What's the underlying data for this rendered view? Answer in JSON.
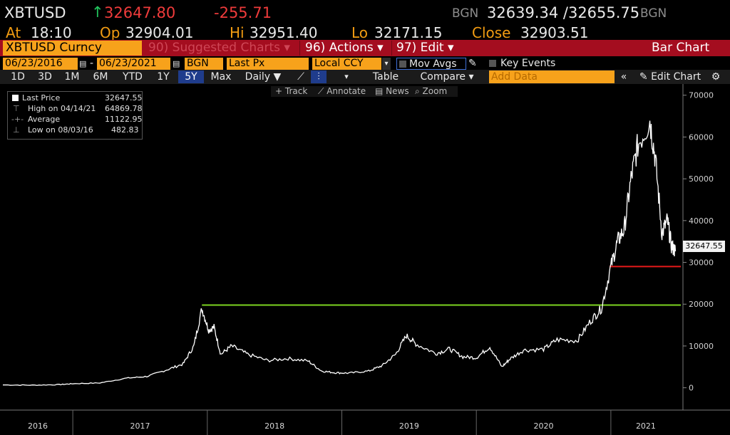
{
  "header": {
    "ticker": "XBTUSD",
    "last_price": "32647.80",
    "change": "-255.71",
    "bgn_left": "BGN",
    "bid_ask": "32639.34 /32655.75",
    "bgn_right": "BGN",
    "at_label": "At",
    "at_value": "18:10",
    "op_label": "Op",
    "op_value": "32904.01",
    "hi_label": "Hi",
    "hi_value": "32951.40",
    "lo_label": "Lo",
    "lo_value": "32171.15",
    "close_label": "Close",
    "close_value": "32903.51"
  },
  "command_bar": {
    "security": "XBTUSD Curncy",
    "suggested": "90) Suggested Charts ▾",
    "actions": "96) Actions ▾",
    "edit": "97) Edit ▾",
    "chart_type": "Bar Chart"
  },
  "controls": {
    "start_date": "06/23/2016",
    "end_date": "06/23/2021",
    "source": "BGN",
    "field": "Last Px",
    "currency": "Local CCY",
    "mov_avgs": "Mov Avgs",
    "key_events": "Key Events"
  },
  "toolbar": {
    "ranges": [
      "1D",
      "3D",
      "1M",
      "6M",
      "YTD",
      "1Y",
      "5Y",
      "Max"
    ],
    "active_range": "5Y",
    "frequency": "Daily ▼",
    "table": "Table",
    "compare": "Compare ▾",
    "add_data_placeholder": "Add Data",
    "edit_chart": "Edit Chart"
  },
  "chart_tools": [
    "Track",
    "Annotate",
    "News",
    "Zoom"
  ],
  "legend": {
    "last_price_label": "Last Price",
    "last_price_value": "32647.55",
    "high_label": "High on 04/14/21",
    "high_value": "64869.78",
    "average_label": "Average",
    "average_value": "11122.95",
    "low_label": "Low on 08/03/16",
    "low_value": "482.83"
  },
  "colors": {
    "price_line": "#ffffff",
    "support_line_green": "#7dd321",
    "support_line_red": "#e61919"
  },
  "chart_data": {
    "type": "line",
    "x_unit": "fractional year",
    "series": [
      {
        "name": "Last Price",
        "x": [
          2016.48,
          2016.7,
          2016.9,
          2017.0,
          2017.2,
          2017.4,
          2017.55,
          2017.7,
          2017.82,
          2017.9,
          2017.96,
          2018.01,
          2018.05,
          2018.1,
          2018.18,
          2018.3,
          2018.45,
          2018.6,
          2018.75,
          2018.85,
          2018.95,
          2019.05,
          2019.2,
          2019.3,
          2019.4,
          2019.48,
          2019.55,
          2019.7,
          2019.8,
          2019.9,
          2020.0,
          2020.1,
          2020.19,
          2020.25,
          2020.35,
          2020.5,
          2020.6,
          2020.75,
          2020.85,
          2020.93,
          2021.0,
          2021.05,
          2021.1,
          2021.15,
          2021.2,
          2021.29,
          2021.33,
          2021.38,
          2021.42,
          2021.45,
          2021.48
        ],
        "y": [
          680,
          620,
          750,
          980,
          1150,
          2300,
          2700,
          4300,
          5700,
          10000,
          19000,
          13800,
          14500,
          8000,
          10000,
          8000,
          6500,
          7000,
          6400,
          4000,
          3600,
          3500,
          4000,
          5300,
          8000,
          12500,
          10500,
          8200,
          9300,
          7400,
          7200,
          9800,
          5000,
          6900,
          9000,
          9200,
          11500,
          11300,
          16000,
          19000,
          29000,
          35000,
          38000,
          50000,
          58000,
          64000,
          55000,
          37000,
          40000,
          34000,
          32647.55
        ]
      }
    ],
    "hlines": [
      {
        "y": 19783,
        "color": "#7dd321",
        "x_start": 2017.96
      },
      {
        "y": 29000,
        "color": "#e61919",
        "x_start": 2020.99
      }
    ],
    "last_label": "32647.55",
    "yticks": [
      0,
      10000,
      20000,
      30000,
      40000,
      50000,
      60000,
      70000
    ],
    "ylim": [
      -5000,
      72000
    ],
    "xlim": [
      2016.48,
      2021.52
    ],
    "xticks": [
      {
        "label": "2016",
        "x": 2016.48
      },
      {
        "label": "2017",
        "x": 2017.0
      },
      {
        "label": "2018",
        "x": 2018.0
      },
      {
        "label": "2019",
        "x": 2019.0
      },
      {
        "label": "2020",
        "x": 2020.0
      },
      {
        "label": "2021",
        "x": 2021.0
      }
    ],
    "grid": false,
    "legend_position": "top-left"
  }
}
